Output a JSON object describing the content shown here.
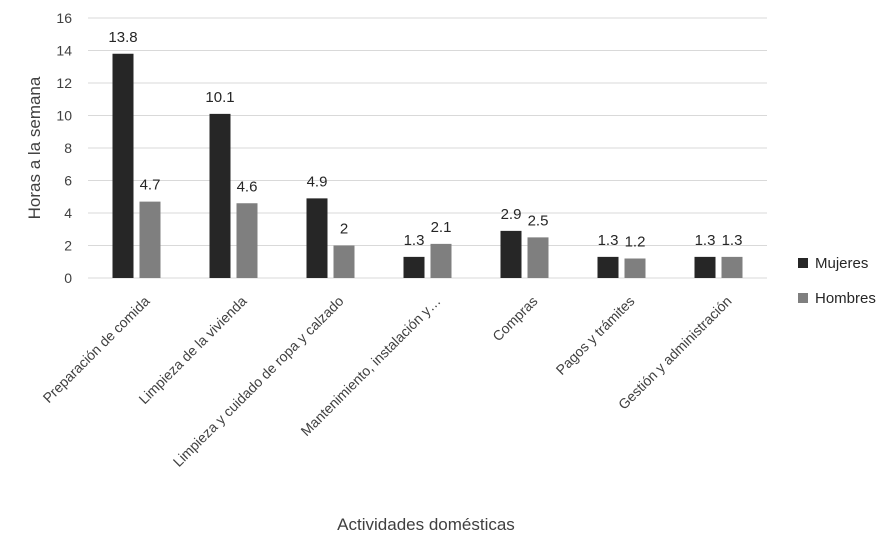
{
  "chart_data": {
    "type": "bar",
    "title": "",
    "xlabel": "Actividades domésticas",
    "ylabel": "Horas a la semana",
    "ylim": [
      0,
      16
    ],
    "yticks": [
      0,
      2,
      4,
      6,
      8,
      10,
      12,
      14,
      16
    ],
    "grid": true,
    "legend_position": "right",
    "categories": [
      "Preparación de comida",
      "Limpieza de la vivienda",
      "Limpieza y cuidado de ropa y calzado",
      "Mantenimiento, instalación y…",
      "Compras",
      "Pagos y trámites",
      "Gestión y administración"
    ],
    "series": [
      {
        "name": "Mujeres",
        "color": "#262626",
        "values": [
          13.8,
          10.1,
          4.9,
          1.3,
          2.9,
          1.3,
          1.3
        ],
        "labels": [
          "13.8",
          "10.1",
          "4.9",
          "1.3",
          "2.9",
          "1.3",
          "1.3"
        ]
      },
      {
        "name": "Hombres",
        "color": "#7f7f7f",
        "values": [
          4.7,
          4.6,
          2.0,
          2.1,
          2.5,
          1.2,
          1.3
        ],
        "labels": [
          "4.7",
          "4.6",
          "2",
          "2.1",
          "2.5",
          "1.2",
          "1.3"
        ]
      }
    ]
  }
}
